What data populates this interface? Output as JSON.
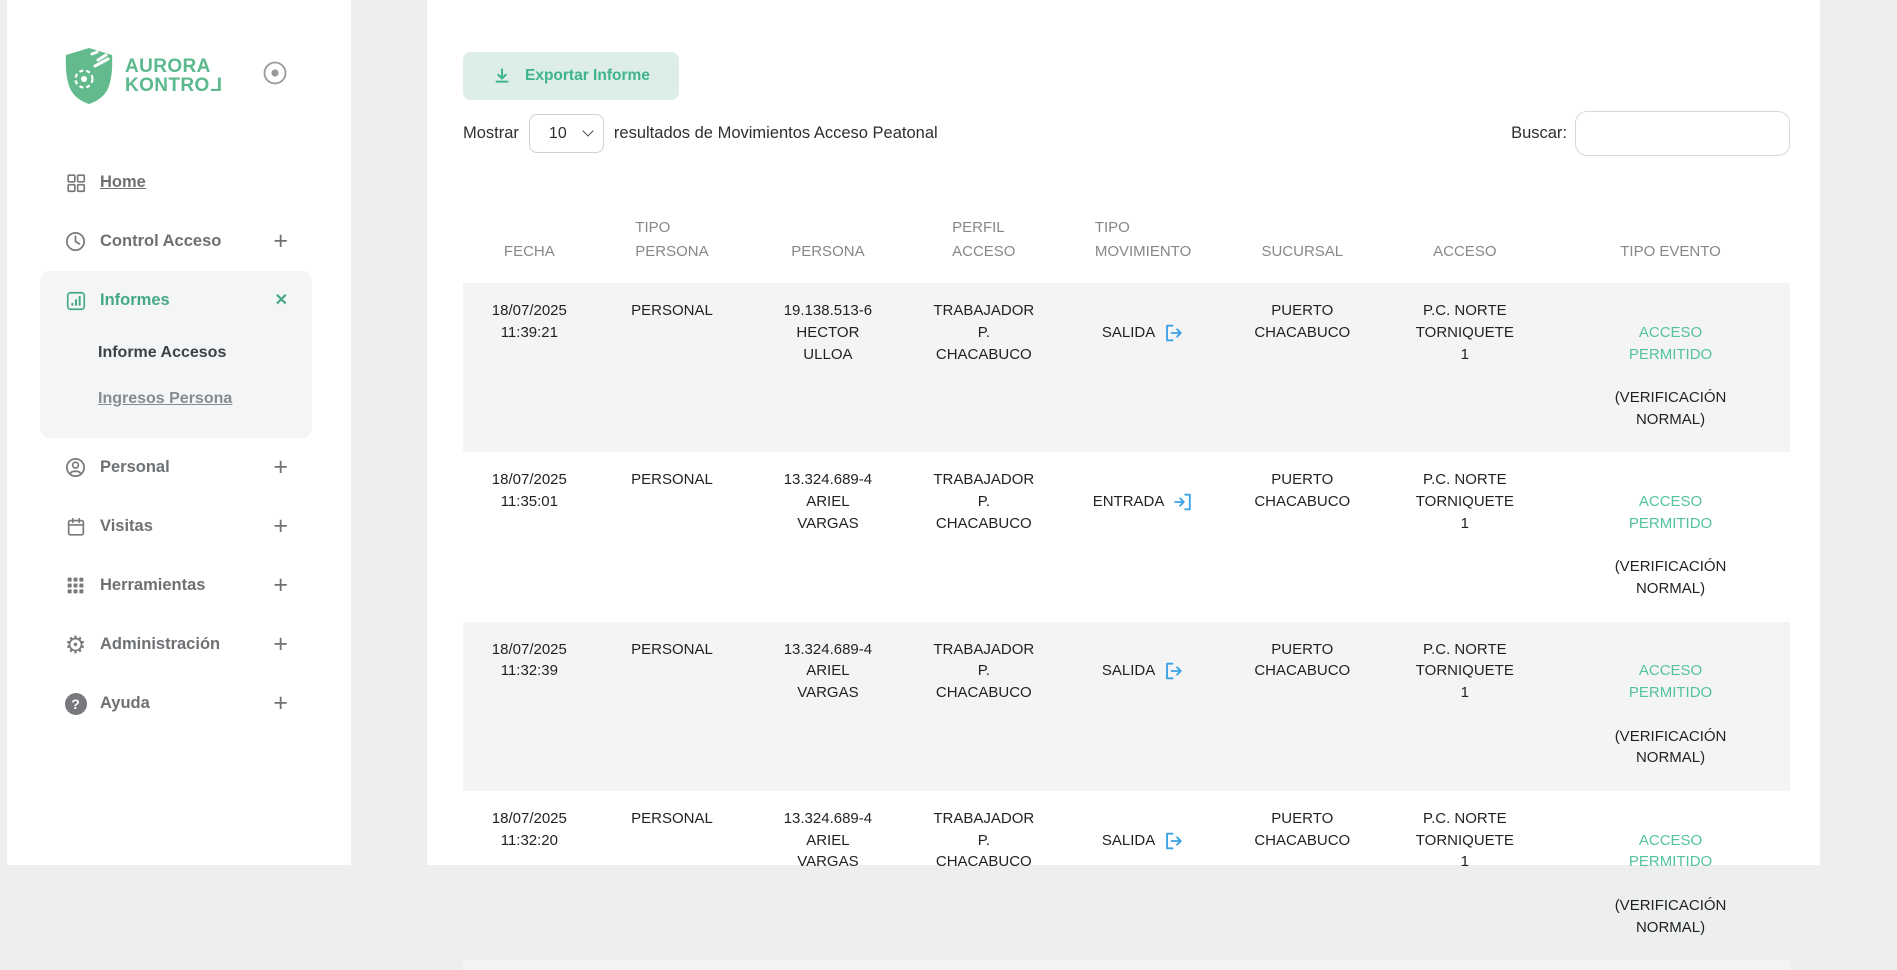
{
  "brand": {
    "line1": "AURORA",
    "line2_main": "KONTRO",
    "line2_last": "L"
  },
  "sidebar": {
    "items": [
      {
        "label": "Home"
      },
      {
        "label": "Control Acceso",
        "expand": "+"
      },
      {
        "label": "Informes",
        "close": "✕",
        "children": [
          {
            "label": "Informe Accesos"
          },
          {
            "label": "Ingresos Persona"
          }
        ]
      },
      {
        "label": "Personal",
        "expand": "+"
      },
      {
        "label": "Visitas",
        "expand": "+"
      },
      {
        "label": "Herramientas",
        "expand": "+"
      },
      {
        "label": "Administración",
        "expand": "+"
      },
      {
        "label": "Ayuda",
        "expand": "+"
      }
    ]
  },
  "toolbar": {
    "export_label": "Exportar Informe",
    "mostrar_label": "Mostrar",
    "page_size": "10",
    "results_label": "resultados de Movimientos Acceso Peatonal",
    "buscar_label": "Buscar:",
    "search_value": ""
  },
  "table": {
    "headers": [
      [
        "FECHA"
      ],
      [
        "TIPO",
        "PERSONA"
      ],
      [
        "PERSONA"
      ],
      [
        "PERFIL",
        "ACCESO"
      ],
      [
        "TIPO",
        "MOVIMIENTO"
      ],
      [
        "SUCURSAL"
      ],
      [
        "ACCESO"
      ],
      [
        "TIPO EVENTO"
      ]
    ],
    "rows": [
      {
        "fecha": [
          "18/07/2025",
          "11:39:21"
        ],
        "tipo_persona": "PERSONAL",
        "persona": [
          "19.138.513-6",
          "HECTOR",
          "ULLOA"
        ],
        "perfil_acceso": [
          "TRABAJADOR",
          "P.",
          "CHACABUCO"
        ],
        "tipo_movimiento": "SALIDA",
        "sucursal": [
          "PUERTO",
          "CHACABUCO"
        ],
        "acceso": [
          "P.C. NORTE",
          "TORNIQUETE",
          "1"
        ],
        "tipo_evento_estado": [
          "ACCESO",
          "PERMITIDO"
        ],
        "tipo_evento_detalle": [
          "(VERIFICACIÓN",
          "NORMAL)"
        ]
      },
      {
        "fecha": [
          "18/07/2025",
          "11:35:01"
        ],
        "tipo_persona": "PERSONAL",
        "persona": [
          "13.324.689-4",
          "ARIEL",
          "VARGAS"
        ],
        "perfil_acceso": [
          "TRABAJADOR",
          "P.",
          "CHACABUCO"
        ],
        "tipo_movimiento": "ENTRADA",
        "sucursal": [
          "PUERTO",
          "CHACABUCO"
        ],
        "acceso": [
          "P.C. NORTE",
          "TORNIQUETE",
          "1"
        ],
        "tipo_evento_estado": [
          "ACCESO",
          "PERMITIDO"
        ],
        "tipo_evento_detalle": [
          "(VERIFICACIÓN",
          "NORMAL)"
        ]
      },
      {
        "fecha": [
          "18/07/2025",
          "11:32:39"
        ],
        "tipo_persona": "PERSONAL",
        "persona": [
          "13.324.689-4",
          "ARIEL",
          "VARGAS"
        ],
        "perfil_acceso": [
          "TRABAJADOR",
          "P.",
          "CHACABUCO"
        ],
        "tipo_movimiento": "SALIDA",
        "sucursal": [
          "PUERTO",
          "CHACABUCO"
        ],
        "acceso": [
          "P.C. NORTE",
          "TORNIQUETE",
          "1"
        ],
        "tipo_evento_estado": [
          "ACCESO",
          "PERMITIDO"
        ],
        "tipo_evento_detalle": [
          "(VERIFICACIÓN",
          "NORMAL)"
        ]
      },
      {
        "fecha": [
          "18/07/2025",
          "11:32:20"
        ],
        "tipo_persona": "PERSONAL",
        "persona": [
          "13.324.689-4",
          "ARIEL",
          "VARGAS"
        ],
        "perfil_acceso": [
          "TRABAJADOR",
          "P.",
          "CHACABUCO"
        ],
        "tipo_movimiento": "SALIDA",
        "sucursal": [
          "PUERTO",
          "CHACABUCO"
        ],
        "acceso": [
          "P.C. NORTE",
          "TORNIQUETE",
          "1"
        ],
        "tipo_evento_estado": [
          "ACCESO",
          "PERMITIDO"
        ],
        "tipo_evento_detalle": [
          "(VERIFICACIÓN",
          "NORMAL)"
        ]
      }
    ]
  },
  "colors": {
    "brand_green": "#5bb98d",
    "accent_green": "#45a988",
    "status_green": "#55c39a",
    "movement_blue": "#3aa0e8",
    "row_stripe": "#f4f4f4"
  }
}
